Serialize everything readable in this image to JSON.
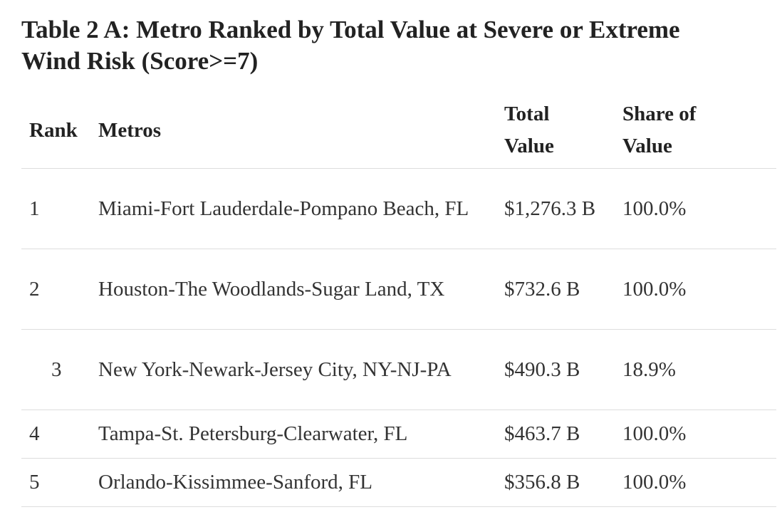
{
  "header": {
    "title": "Table 2 A: Metro Ranked by Total Value at Severe or Extreme Wind Risk (Score>=7)"
  },
  "table": {
    "columns": [
      "Rank",
      "Metros",
      "Total Value",
      "Share of Value"
    ],
    "rows": [
      [
        "1",
        "Miami-Fort Lauderdale-Pompano Beach, FL",
        "$1,276.3 B",
        "100.0%"
      ],
      [
        "2",
        "Houston-The Woodlands-Sugar Land, TX",
        "$732.6 B",
        "100.0%"
      ],
      [
        "3",
        "New York-Newark-Jersey City, NY-NJ-PA",
        "$490.3 B",
        "18.9%"
      ],
      [
        "4",
        "Tampa-St. Petersburg-Clearwater, FL",
        "$463.7 B",
        "100.0%"
      ],
      [
        "5",
        "Orlando-Kissimmee-Sanford, FL",
        "$356.8 B",
        "100.0%"
      ]
    ]
  }
}
